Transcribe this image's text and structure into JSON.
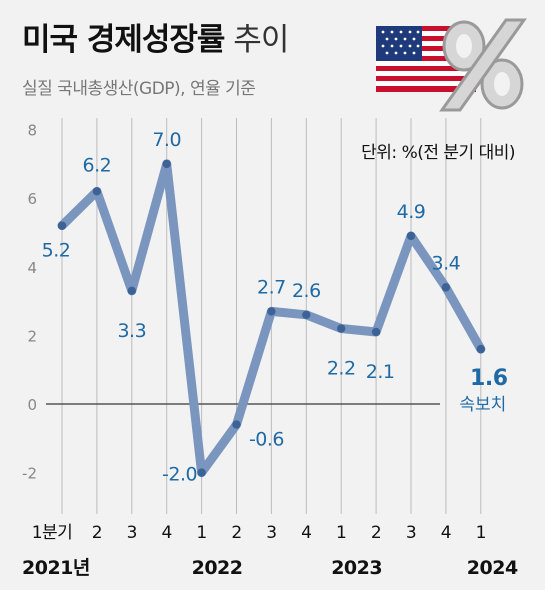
{
  "title": {
    "bold": "미국 경제성장률",
    "light": "추이"
  },
  "subtitle": "실질 국내총생산(GDP), 연율 기준",
  "unit_label": "단위: %(전 분기 대비)",
  "colors": {
    "line": "#7a96bf",
    "dot": "#3d6295",
    "label": "#1f6aa5",
    "zero": "#555555",
    "grid": "#bcbcbc"
  },
  "icons": [
    "us-flag-icon",
    "percent-icon"
  ],
  "chart_data": {
    "type": "line",
    "title": "미국 경제성장률 추이",
    "x": [
      "1분기",
      "2",
      "3",
      "4",
      "1",
      "2",
      "3",
      "4",
      "1",
      "2",
      "3",
      "4",
      "1"
    ],
    "years": [
      "2021년",
      "2022",
      "2023",
      "2024"
    ],
    "series": [
      {
        "values": [
          5.2,
          6.2,
          3.3,
          7.0,
          -2.0,
          -0.6,
          2.7,
          2.6,
          2.2,
          2.1,
          4.9,
          3.4,
          1.6
        ]
      }
    ],
    "value_labels": [
      "5.2",
      "6.2",
      "3.3",
      "7.0",
      "-2.0",
      "-0.6",
      "2.7",
      "2.6",
      "2.2",
      "2.1",
      "4.9",
      "3.4",
      "1.6"
    ],
    "annotation": "속보치",
    "yticks": [
      "8",
      "6",
      "4",
      "2",
      "0",
      "-2"
    ],
    "ylim": [
      -3,
      8
    ],
    "grid": true,
    "xlabel": "",
    "ylabel": ""
  }
}
